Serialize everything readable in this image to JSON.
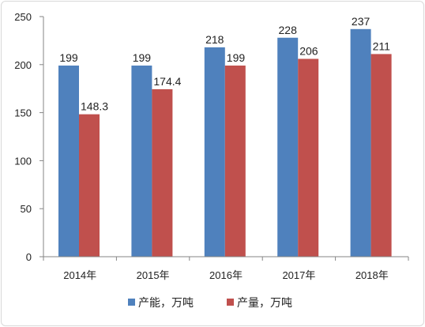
{
  "chart_data": {
    "type": "bar",
    "categories": [
      "2014年",
      "2015年",
      "2016年",
      "2017年",
      "2018年"
    ],
    "series": [
      {
        "name": "产能，万吨",
        "color": "#4f81bd",
        "values": [
          199,
          199,
          218,
          228,
          237
        ],
        "labels": [
          "199",
          "199",
          "218",
          "228",
          "237"
        ]
      },
      {
        "name": "产量，万吨",
        "color": "#c0504d",
        "values": [
          148.3,
          174.4,
          199,
          206,
          211
        ],
        "labels": [
          "148.3",
          "174.4",
          "199",
          "206",
          "211"
        ]
      }
    ],
    "yticks": [
      0,
      50,
      100,
      150,
      200,
      250
    ],
    "ylim": [
      0,
      250
    ],
    "title": "",
    "xlabel": "",
    "ylabel": "",
    "grid": false,
    "legend_position": "bottom"
  }
}
